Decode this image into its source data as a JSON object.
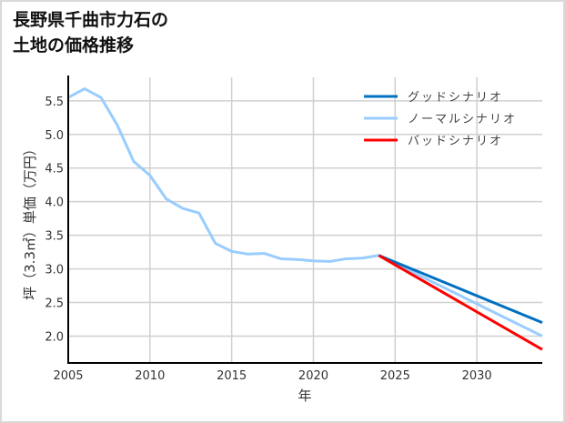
{
  "title": "長野県千曲市力石の\n土地の価格推移",
  "chart_data": {
    "type": "line",
    "title": "長野県千曲市力石の土地の価格推移",
    "xlabel": "年",
    "ylabel": "坪（3.3㎡）単価（万円）",
    "xlim": [
      2005,
      2034
    ],
    "ylim": [
      1.6,
      5.85
    ],
    "x_ticks": [
      2005,
      2010,
      2015,
      2020,
      2025,
      2030
    ],
    "y_ticks": [
      2.0,
      2.5,
      3.0,
      3.5,
      4.0,
      4.5,
      5.0,
      5.5
    ],
    "grid": true,
    "legend_position": "upper right",
    "series": [
      {
        "name": "グッドシナリオ",
        "color": "#0070c0",
        "x": [
          2024,
          2034
        ],
        "values": [
          3.2,
          2.2
        ]
      },
      {
        "name": "ノーマルシナリオ",
        "color": "#99ccff",
        "x": [
          2005,
          2006,
          2007,
          2008,
          2009,
          2010,
          2011,
          2012,
          2013,
          2014,
          2015,
          2016,
          2017,
          2018,
          2019,
          2020,
          2021,
          2022,
          2023,
          2024,
          2034
        ],
        "values": [
          5.55,
          5.68,
          5.55,
          5.14,
          4.6,
          4.39,
          4.04,
          3.9,
          3.83,
          3.38,
          3.26,
          3.22,
          3.23,
          3.15,
          3.14,
          3.12,
          3.11,
          3.15,
          3.16,
          3.2,
          2.0
        ]
      },
      {
        "name": "バッドシナリオ",
        "color": "#ff0000",
        "x": [
          2024,
          2034
        ],
        "values": [
          3.2,
          1.8
        ]
      }
    ]
  }
}
